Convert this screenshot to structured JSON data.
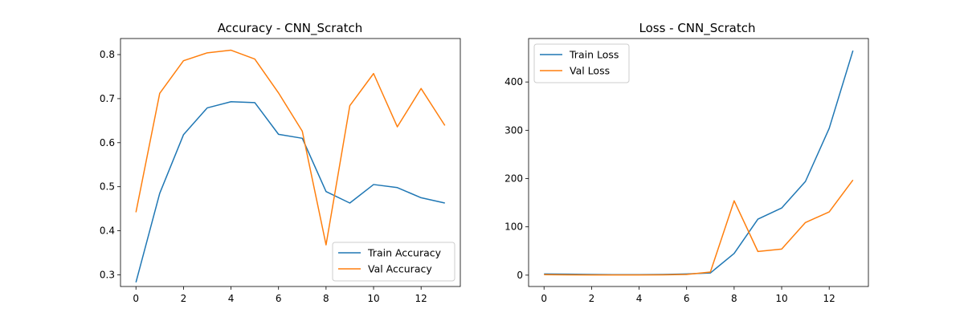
{
  "colors": {
    "train": "#1f77b4",
    "val": "#ff7f0e"
  },
  "chart_data": [
    {
      "type": "line",
      "title": "Accuracy - CNN_Scratch",
      "x": [
        0,
        1,
        2,
        3,
        4,
        5,
        6,
        7,
        8,
        9,
        10,
        11,
        12,
        13
      ],
      "xlim": [
        -0.65,
        13.65
      ],
      "ylim": [
        0.2735,
        0.8365
      ],
      "xticks": [
        0,
        2,
        4,
        6,
        8,
        10,
        12
      ],
      "yticks": [
        0.3,
        0.4,
        0.5,
        0.6,
        0.7,
        0.8
      ],
      "ytick_labels": [
        "0.3",
        "0.4",
        "0.5",
        "0.6",
        "0.7",
        "0.8"
      ],
      "legend_loc": "lower right",
      "grid": false,
      "series": [
        {
          "name": "Train Accuracy",
          "color": "#1f77b4",
          "values": [
            0.283,
            0.485,
            0.618,
            0.679,
            0.693,
            0.691,
            0.619,
            0.61,
            0.489,
            0.463,
            0.505,
            0.498,
            0.475,
            0.463
          ]
        },
        {
          "name": "Val Accuracy",
          "color": "#ff7f0e",
          "values": [
            0.442,
            0.712,
            0.786,
            0.804,
            0.81,
            0.79,
            0.713,
            0.626,
            0.368,
            0.684,
            0.757,
            0.636,
            0.723,
            0.639
          ]
        }
      ]
    },
    {
      "type": "line",
      "title": "Loss - CNN_Scratch",
      "x": [
        0,
        1,
        2,
        3,
        4,
        5,
        6,
        7,
        8,
        9,
        10,
        11,
        12,
        13
      ],
      "xlim": [
        -0.65,
        13.65
      ],
      "ylim": [
        -23.5,
        490
      ],
      "xticks": [
        0,
        2,
        4,
        6,
        8,
        10,
        12
      ],
      "yticks": [
        0,
        100,
        200,
        300,
        400
      ],
      "ytick_labels": [
        "0",
        "100",
        "200",
        "300",
        "400"
      ],
      "legend_loc": "upper left",
      "grid": false,
      "series": [
        {
          "name": "Train Loss",
          "color": "#1f77b4",
          "values": [
            2.5,
            2.0,
            1.5,
            1.0,
            1.0,
            1.5,
            2.5,
            4.5,
            45,
            116,
            139,
            194,
            304,
            465
          ]
        },
        {
          "name": "Val Loss",
          "color": "#ff7f0e",
          "values": [
            1.0,
            0.5,
            0.3,
            0.3,
            0.3,
            0.5,
            1.5,
            6.5,
            154,
            49,
            54,
            109,
            131,
            197
          ]
        }
      ]
    }
  ]
}
